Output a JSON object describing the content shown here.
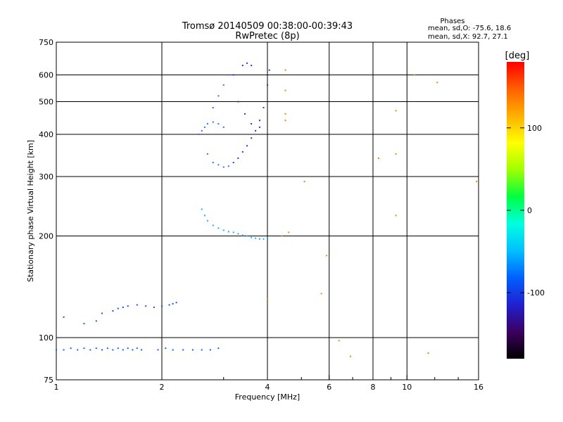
{
  "header": {
    "title_line1": "Tromsø 20140509 00:38:00-00:39:43",
    "title_line2": "RwPretec (8p)"
  },
  "stats": {
    "heading": "Phases",
    "line_o": "mean, sd,O: -75.6, 18.6",
    "line_x": "mean, sd,X:  92.7, 27.1"
  },
  "colorbar": {
    "label": "[deg]",
    "ticks": [
      {
        "value": 100,
        "label": "100"
      },
      {
        "value": 0,
        "label": "0"
      },
      {
        "value": -100,
        "label": "-100"
      }
    ],
    "range": [
      -180,
      180
    ],
    "colormap": [
      "#000000",
      "#3c0060",
      "#2020d0",
      "#0060ff",
      "#00c0ff",
      "#00ffe0",
      "#00ff40",
      "#a0ff00",
      "#ffff00",
      "#ffb000",
      "#ff6000",
      "#ff0000"
    ]
  },
  "chart_data": {
    "type": "scatter",
    "xlabel": "Frequency [MHz]",
    "ylabel": "Stationary phase Virtual Height [km]",
    "xscale": "log",
    "yscale": "log",
    "xlim": [
      1,
      16
    ],
    "ylim": [
      75,
      750
    ],
    "xticks": [
      {
        "value": 1,
        "label": "1"
      },
      {
        "value": 2,
        "label": "2"
      },
      {
        "value": 4,
        "label": "4"
      },
      {
        "value": 6,
        "label": "6"
      },
      {
        "value": 8,
        "label": "8"
      },
      {
        "value": 10,
        "label": "10"
      },
      {
        "value": 16,
        "label": "16"
      }
    ],
    "yticks": [
      {
        "value": 75,
        "label": "75"
      },
      {
        "value": 100,
        "label": "100"
      },
      {
        "value": 200,
        "label": "200"
      },
      {
        "value": 300,
        "label": "300"
      },
      {
        "value": 400,
        "label": "400"
      },
      {
        "value": 500,
        "label": "500"
      },
      {
        "value": 600,
        "label": "600"
      },
      {
        "value": 750,
        "label": "750"
      }
    ],
    "x_gridlines": [
      2,
      4,
      6,
      8,
      10
    ],
    "y_gridlines": [
      100,
      200,
      300,
      400,
      500,
      600
    ],
    "minor_xticks": [
      3,
      5,
      7,
      9,
      12,
      14
    ],
    "grid": true,
    "series": [
      {
        "values": [
          [
            1.0,
            92
          ],
          [
            1.05,
            92
          ],
          [
            1.1,
            93
          ],
          [
            1.15,
            92
          ],
          [
            1.2,
            93
          ],
          [
            1.25,
            92
          ],
          [
            1.3,
            93
          ],
          [
            1.35,
            92
          ],
          [
            1.4,
            93
          ],
          [
            1.45,
            92
          ],
          [
            1.5,
            93
          ],
          [
            1.55,
            92
          ],
          [
            1.6,
            93
          ],
          [
            1.65,
            92
          ],
          [
            1.7,
            93
          ],
          [
            1.75,
            92
          ],
          [
            1.95,
            92
          ],
          [
            2.05,
            93
          ],
          [
            2.15,
            92
          ],
          [
            2.3,
            92
          ],
          [
            2.45,
            92
          ],
          [
            2.6,
            92
          ],
          [
            2.75,
            92
          ],
          [
            2.9,
            93
          ]
        ]
      },
      {
        "values": [
          [
            1.05,
            115
          ],
          [
            1.2,
            110
          ],
          [
            1.3,
            112
          ],
          [
            1.35,
            118
          ],
          [
            1.45,
            120
          ],
          [
            1.5,
            122
          ],
          [
            1.55,
            123
          ],
          [
            1.6,
            124
          ],
          [
            1.7,
            125
          ],
          [
            1.8,
            124
          ],
          [
            1.9,
            123
          ],
          [
            2.0,
            124
          ],
          [
            2.1,
            125
          ],
          [
            2.15,
            126
          ],
          [
            2.2,
            127
          ]
        ]
      },
      {
        "values": [
          [
            2.6,
            240
          ],
          [
            2.65,
            230
          ],
          [
            2.7,
            222
          ],
          [
            2.8,
            215
          ],
          [
            2.9,
            211
          ],
          [
            3.0,
            208
          ],
          [
            3.1,
            206
          ],
          [
            3.2,
            205
          ],
          [
            3.3,
            203
          ],
          [
            3.4,
            201
          ],
          [
            3.5,
            200
          ],
          [
            3.6,
            198
          ],
          [
            3.7,
            197
          ],
          [
            3.8,
            196
          ],
          [
            3.9,
            196
          ],
          [
            4.0,
            197
          ]
        ]
      },
      {
        "values": [
          [
            2.55,
            400
          ],
          [
            2.6,
            410
          ],
          [
            2.65,
            420
          ],
          [
            2.7,
            430
          ],
          [
            2.8,
            435
          ],
          [
            2.9,
            430
          ],
          [
            3.0,
            420
          ],
          [
            2.8,
            480
          ],
          [
            2.9,
            520
          ],
          [
            3.0,
            560
          ],
          [
            3.1,
            600
          ],
          [
            2.7,
            350
          ],
          [
            2.8,
            330
          ],
          [
            2.9,
            325
          ],
          [
            3.0,
            320
          ],
          [
            3.1,
            322
          ]
        ]
      },
      {
        "values": [
          [
            3.2,
            330
          ],
          [
            3.3,
            340
          ],
          [
            3.4,
            355
          ],
          [
            3.5,
            370
          ],
          [
            3.6,
            390
          ],
          [
            3.7,
            410
          ],
          [
            3.8,
            440
          ],
          [
            3.9,
            480
          ],
          [
            4.0,
            560
          ],
          [
            4.05,
            620
          ],
          [
            3.4,
            640
          ],
          [
            3.5,
            650
          ],
          [
            3.6,
            640
          ],
          [
            3.2,
            600
          ],
          [
            3.3,
            500
          ],
          [
            3.45,
            460
          ],
          [
            3.6,
            430
          ],
          [
            3.8,
            420
          ]
        ]
      },
      {
        "values": [
          [
            4.5,
            620
          ],
          [
            4.5,
            540
          ],
          [
            4.5,
            460
          ],
          [
            4.5,
            440
          ],
          [
            4.4,
            200
          ],
          [
            4.6,
            205
          ],
          [
            5.1,
            290
          ],
          [
            5.9,
            175
          ],
          [
            6.4,
            98
          ],
          [
            6.9,
            88
          ],
          [
            8.3,
            340
          ],
          [
            9.3,
            350
          ],
          [
            9.3,
            230
          ],
          [
            9.3,
            470
          ],
          [
            10.5,
            600
          ],
          [
            12.2,
            570
          ],
          [
            15.8,
            290
          ],
          [
            11.5,
            90
          ],
          [
            4.0,
            130
          ],
          [
            5.7,
            135
          ]
        ]
      }
    ]
  }
}
